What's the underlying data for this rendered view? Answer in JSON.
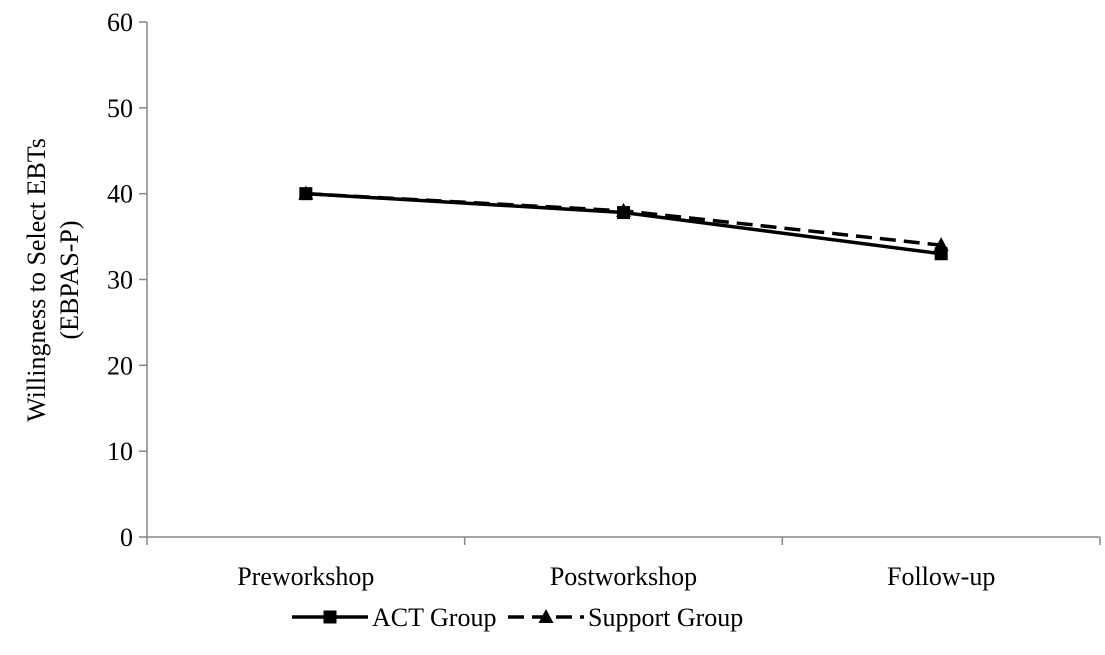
{
  "chart_data": {
    "type": "line",
    "categories": [
      "Preworkshop",
      "Postworkshop",
      "Follow-up"
    ],
    "series": [
      {
        "name": "ACT Group",
        "values": [
          40,
          37.8,
          33
        ],
        "marker": "square",
        "dash": "solid",
        "color": "#000000"
      },
      {
        "name": "Support Group",
        "values": [
          40,
          38,
          34
        ],
        "marker": "triangle",
        "dash": "dashed",
        "color": "#000000"
      }
    ],
    "title": "",
    "xlabel": "",
    "ylabel_lines": [
      "Willingness to Select EBTs",
      "(EBPAS-P)"
    ],
    "ylim": [
      0,
      60
    ],
    "yticks": [
      0,
      10,
      20,
      30,
      40,
      50,
      60
    ],
    "grid": false,
    "legend_position": "bottom"
  }
}
